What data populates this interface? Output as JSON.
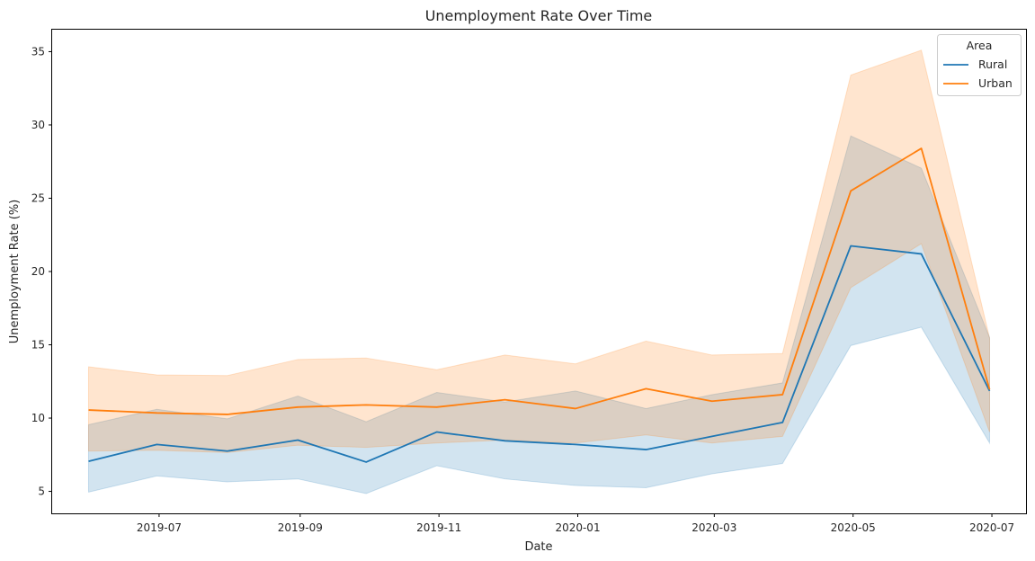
{
  "chart_data": {
    "type": "line",
    "title": "Unemployment Rate Over Time",
    "xlabel": "Date",
    "ylabel": "Unemployment Rate (%)",
    "x": [
      "2019-05-31",
      "2019-06-30",
      "2019-07-31",
      "2019-08-31",
      "2019-09-30",
      "2019-10-31",
      "2019-11-30",
      "2019-12-31",
      "2020-01-31",
      "2020-02-29",
      "2020-03-31",
      "2020-04-30",
      "2020-05-31",
      "2020-06-30"
    ],
    "xlim": [
      "2019-05-15",
      "2020-07-16"
    ],
    "x_ticks": [
      "2019-07-01",
      "2019-09-01",
      "2019-11-01",
      "2020-01-01",
      "2020-03-01",
      "2020-05-01",
      "2020-07-01"
    ],
    "x_tick_labels": [
      "2019-07",
      "2019-09",
      "2019-11",
      "2020-01",
      "2020-03",
      "2020-05",
      "2020-07"
    ],
    "ylim": [
      3.5,
      36.5
    ],
    "y_ticks": [
      5,
      10,
      15,
      20,
      25,
      30,
      35
    ],
    "grid": false,
    "legend": {
      "title": "Area",
      "placement": "top-right"
    },
    "series": [
      {
        "name": "Rural",
        "color": "#1f77b4",
        "values": [
          7.05,
          8.2,
          7.75,
          8.5,
          7.0,
          9.05,
          8.45,
          8.2,
          7.85,
          8.75,
          9.7,
          21.75,
          21.2,
          11.85
        ],
        "ci_low": [
          4.95,
          6.05,
          5.65,
          5.85,
          4.85,
          6.75,
          5.85,
          5.4,
          5.25,
          6.2,
          6.9,
          14.95,
          16.2,
          8.3
        ],
        "ci_high": [
          9.55,
          10.6,
          9.95,
          11.5,
          9.75,
          11.75,
          11.1,
          11.85,
          10.65,
          11.6,
          12.4,
          29.25,
          27.05,
          15.5
        ]
      },
      {
        "name": "Urban",
        "color": "#ff7f0e",
        "values": [
          10.55,
          10.35,
          10.25,
          10.75,
          10.9,
          10.75,
          11.25,
          10.65,
          12.0,
          11.15,
          11.6,
          25.5,
          28.4,
          11.95
        ],
        "ci_low": [
          7.75,
          7.8,
          7.65,
          8.15,
          8.0,
          8.3,
          8.5,
          8.3,
          8.85,
          8.3,
          8.75,
          18.9,
          21.9,
          9.05
        ],
        "ci_high": [
          13.5,
          12.95,
          12.9,
          14.0,
          14.1,
          13.3,
          14.3,
          13.7,
          15.25,
          14.3,
          14.4,
          33.4,
          35.1,
          15.45
        ]
      }
    ]
  }
}
